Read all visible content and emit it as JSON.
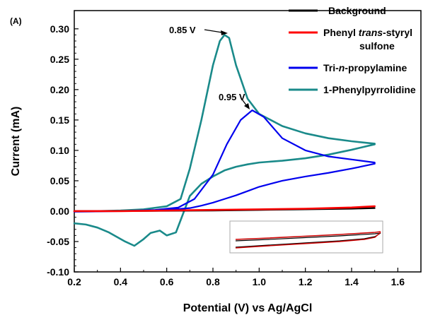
{
  "chart_data": {
    "type": "line",
    "panel_label": "(A)",
    "title": "",
    "xlabel": "Potential (V) vs Ag/AgCl",
    "ylabel": "Current (mA)",
    "xlim": [
      0.2,
      1.7
    ],
    "ylim": [
      -0.1,
      0.33
    ],
    "x_ticks": [
      "0.2",
      "0.4",
      "0.6",
      "0.8",
      "1.0",
      "1.2",
      "1.4",
      "1.6"
    ],
    "y_ticks": [
      "-0.10",
      "-0.05",
      "0.00",
      "0.05",
      "0.10",
      "0.15",
      "0.20",
      "0.25",
      "0.30"
    ],
    "legend_position": "top-right",
    "grid": false,
    "inset": true,
    "series": [
      {
        "name": "Background",
        "color": "#000000",
        "x": [
          0.2,
          0.4,
          0.6,
          0.8,
          1.0,
          1.2,
          1.4,
          1.5
        ],
        "y": [
          0.0,
          0.0,
          0.0005,
          0.001,
          0.002,
          0.003,
          0.004,
          0.005
        ]
      },
      {
        "name_parts": [
          "Phenyl ",
          "trans",
          "-styryl",
          "sulfone"
        ],
        "color": "#ff0000",
        "x": [
          0.2,
          0.4,
          0.6,
          0.8,
          1.0,
          1.2,
          1.4,
          1.5
        ],
        "y": [
          0.0,
          0.0,
          0.001,
          0.002,
          0.003,
          0.004,
          0.006,
          0.008
        ]
      },
      {
        "name_parts": [
          "Tri-",
          "n",
          "-propylamine"
        ],
        "color": "#0000ee",
        "x": [
          0.2,
          0.4,
          0.55,
          0.65,
          0.72,
          0.8,
          0.86,
          0.92,
          0.97,
          1.02,
          1.1,
          1.2,
          1.3,
          1.4,
          1.5,
          1.5,
          1.4,
          1.3,
          1.2,
          1.1,
          1.0,
          0.95,
          0.9,
          0.85,
          0.8,
          0.75,
          0.7,
          0.6,
          0.5,
          0.4,
          0.2
        ],
        "y": [
          0.0,
          0.0,
          0.002,
          0.006,
          0.02,
          0.06,
          0.11,
          0.15,
          0.166,
          0.155,
          0.12,
          0.1,
          0.09,
          0.085,
          0.08,
          0.078,
          0.07,
          0.063,
          0.057,
          0.05,
          0.04,
          0.033,
          0.026,
          0.02,
          0.014,
          0.009,
          0.005,
          0.002,
          0.001,
          0.0,
          -0.001
        ]
      },
      {
        "name": "1-Phenylpyrrolidine",
        "color": "#1a8a8a",
        "x": [
          0.2,
          0.3,
          0.4,
          0.5,
          0.6,
          0.66,
          0.7,
          0.75,
          0.8,
          0.83,
          0.85,
          0.87,
          0.9,
          0.95,
          1.0,
          1.1,
          1.2,
          1.3,
          1.4,
          1.5,
          1.5,
          1.4,
          1.3,
          1.2,
          1.1,
          1.0,
          0.95,
          0.9,
          0.85,
          0.8,
          0.75,
          0.7,
          0.68,
          0.66,
          0.64,
          0.6,
          0.57,
          0.53,
          0.5,
          0.46,
          0.42,
          0.35,
          0.3,
          0.25,
          0.2
        ],
        "y": [
          0.0,
          0.0,
          0.001,
          0.003,
          0.008,
          0.02,
          0.07,
          0.15,
          0.24,
          0.28,
          0.29,
          0.285,
          0.24,
          0.185,
          0.16,
          0.14,
          0.128,
          0.12,
          0.115,
          0.111,
          0.11,
          0.101,
          0.093,
          0.087,
          0.083,
          0.08,
          0.077,
          0.073,
          0.067,
          0.057,
          0.045,
          0.025,
          0.005,
          -0.015,
          -0.035,
          -0.04,
          -0.032,
          -0.036,
          -0.046,
          -0.057,
          -0.05,
          -0.035,
          -0.027,
          -0.022,
          -0.02
        ]
      }
    ],
    "annotations": [
      {
        "text": "0.85 V",
        "x": 0.85,
        "y": 0.29
      },
      {
        "text": "0.95 V",
        "x": 0.97,
        "y": 0.168
      }
    ]
  }
}
